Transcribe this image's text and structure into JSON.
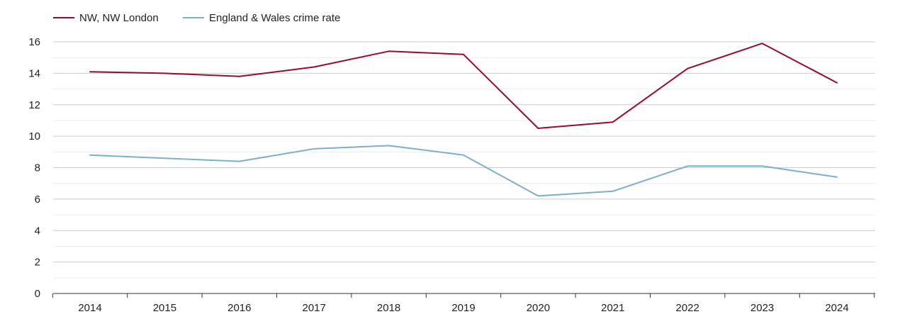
{
  "chart_data": {
    "type": "line",
    "title": "",
    "xlabel": "",
    "ylabel": "",
    "categories": [
      "2014",
      "2015",
      "2016",
      "2017",
      "2018",
      "2019",
      "2020",
      "2021",
      "2022",
      "2023",
      "2024"
    ],
    "ylim": [
      0,
      16
    ],
    "yticks": [
      0,
      2,
      4,
      6,
      8,
      10,
      12,
      14,
      16
    ],
    "grid": true,
    "legend_position": "top-left",
    "series": [
      {
        "name": "NW, NW London",
        "color": "#9b0a2e",
        "values": [
          14.1,
          14.0,
          13.8,
          14.4,
          15.4,
          15.2,
          10.5,
          10.9,
          14.3,
          15.9,
          13.4
        ]
      },
      {
        "name": "England & Wales crime rate",
        "color": "#7bafd0",
        "values": [
          8.8,
          8.6,
          8.4,
          9.2,
          9.4,
          8.8,
          6.2,
          6.5,
          8.1,
          8.1,
          7.4
        ]
      }
    ]
  }
}
